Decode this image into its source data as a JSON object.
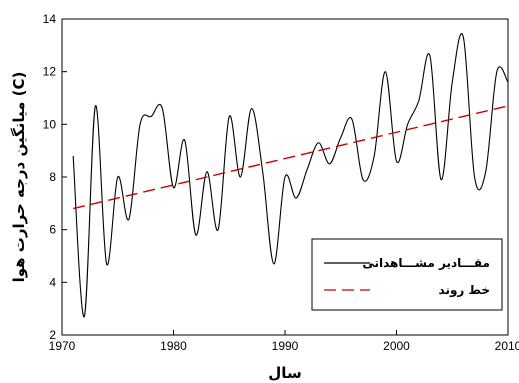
{
  "chart_data": {
    "type": "line",
    "xlabel": "سال",
    "ylabel": "میانگین درجه حرارت هوا (C)",
    "xlim": [
      1970,
      2010
    ],
    "ylim": [
      2,
      14
    ],
    "xticks": [
      1970,
      1980,
      1990,
      2000,
      2010
    ],
    "yticks": [
      2,
      4,
      6,
      8,
      10,
      12,
      14
    ],
    "legend_position": "bottom-right",
    "grid": false,
    "series": [
      {
        "name": "مقـــادیر مشـــاهداتی",
        "style": "solid",
        "color": "#000000",
        "x": [
          1971,
          1972,
          1973,
          1974,
          1975,
          1976,
          1977,
          1978,
          1979,
          1980,
          1981,
          1982,
          1983,
          1984,
          1985,
          1986,
          1987,
          1988,
          1989,
          1990,
          1991,
          1992,
          1993,
          1994,
          1995,
          1996,
          1997,
          1998,
          1999,
          2000,
          2001,
          2002,
          2003,
          2004,
          2005,
          2006,
          2007,
          2008,
          2009,
          2010
        ],
        "y": [
          8.8,
          2.7,
          10.7,
          4.7,
          8.0,
          6.4,
          10.0,
          10.3,
          10.6,
          7.6,
          9.4,
          5.8,
          8.2,
          6.0,
          10.3,
          8.0,
          10.6,
          8.2,
          4.7,
          8.0,
          7.2,
          8.3,
          9.3,
          8.5,
          9.5,
          10.2,
          7.9,
          8.8,
          12.0,
          8.6,
          10.0,
          10.9,
          12.6,
          7.9,
          11.6,
          13.3,
          8.0,
          8.2,
          12.0,
          11.6
        ]
      },
      {
        "name": "خط روند",
        "style": "dashed",
        "color": "#cc0000",
        "x": [
          1971,
          2010
        ],
        "y": [
          6.8,
          10.7
        ]
      }
    ]
  }
}
